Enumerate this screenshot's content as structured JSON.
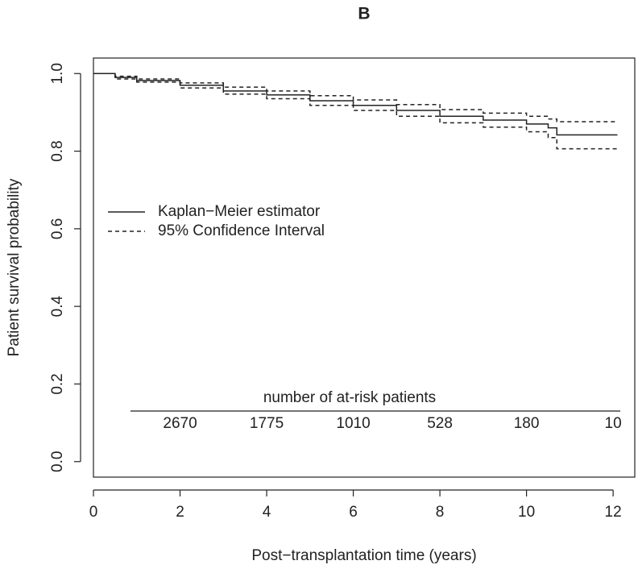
{
  "chart_data": {
    "type": "line",
    "step": "post",
    "title": "B",
    "x_label": "Post−transplantation time (years)",
    "y_label": "Patient survival probability",
    "xlim": [
      0,
      12.5
    ],
    "ylim": [
      -0.04,
      1.04
    ],
    "xticks": [
      0,
      2,
      4,
      6,
      8,
      10,
      12
    ],
    "yticks": [
      {
        "value": 0,
        "label": "0.0"
      },
      {
        "value": 0.2,
        "label": "0.2"
      },
      {
        "value": 0.4,
        "label": "0.4"
      },
      {
        "value": 0.6,
        "label": "0.6"
      },
      {
        "value": 0.8,
        "label": "0.8"
      },
      {
        "value": 1,
        "label": "1.0"
      }
    ],
    "x": [
      0,
      0.5,
      1,
      2,
      3,
      4,
      5,
      6,
      7,
      8,
      9,
      10,
      10.5,
      10.7,
      12.1
    ],
    "series": [
      {
        "name": "Kaplan−Meier estimator",
        "color": "#222222",
        "dash": "solid",
        "values": [
          1.0,
          0.99,
          0.982,
          0.97,
          0.955,
          0.945,
          0.93,
          0.918,
          0.905,
          0.89,
          0.88,
          0.87,
          0.86,
          0.842,
          0.842
        ]
      },
      {
        "name": "95% Confidence Interval",
        "color": "#222222",
        "dash": "dashed",
        "upper": [
          1.0,
          0.993,
          0.986,
          0.976,
          0.965,
          0.955,
          0.943,
          0.932,
          0.92,
          0.907,
          0.898,
          0.89,
          0.883,
          0.876,
          0.876
        ],
        "lower": [
          1.0,
          0.986,
          0.978,
          0.963,
          0.947,
          0.935,
          0.918,
          0.905,
          0.89,
          0.873,
          0.862,
          0.85,
          0.835,
          0.806,
          0.806
        ]
      }
    ],
    "legend": "left",
    "at_risk": {
      "title": "number of at-risk patients",
      "times": [
        2,
        4,
        6,
        8,
        10,
        12
      ],
      "counts": [
        2670,
        1775,
        1010,
        528,
        180,
        10
      ]
    }
  }
}
